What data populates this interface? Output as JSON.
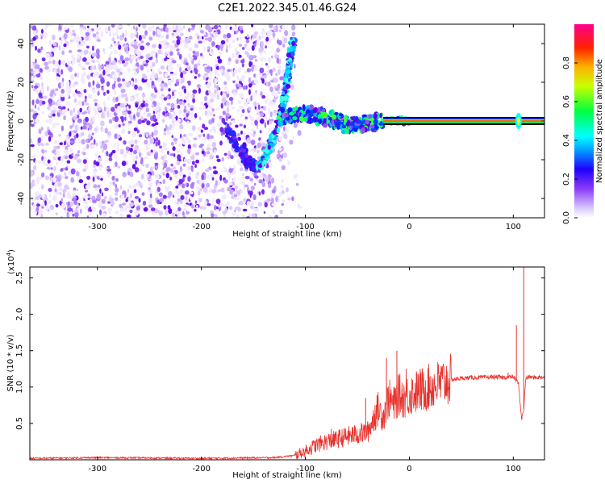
{
  "title": "C2E1.2022.345.01.46.G24",
  "chart_data": [
    {
      "type": "heatmap",
      "xlabel": "Height of straight line (km)",
      "ylabel": "Frequency (Hz)",
      "xlim": [
        -365,
        130
      ],
      "ylim": [
        -50,
        50
      ],
      "x_ticks": [
        -300,
        -200,
        -100,
        0,
        100
      ],
      "y_ticks": [
        -40,
        -20,
        0,
        20,
        40
      ],
      "colorbar": {
        "label": "Normalized spectral amplitude",
        "range": [
          0.0,
          1.0
        ],
        "ticks": [
          0.0,
          0.2,
          0.4,
          0.6,
          0.8
        ],
        "colors": [
          "#e8dcff",
          "#9b5ff5",
          "#5a00f0",
          "#0000ff",
          "#00ffff",
          "#00ff00",
          "#ffff00",
          "#ff8000",
          "#ff0000",
          "#ff0080"
        ]
      },
      "features": {
        "noise_region_x": [
          -365,
          -120
        ],
        "chirp_track": [
          [
            -145,
            -24
          ],
          [
            -135,
            -15
          ],
          [
            -125,
            0
          ],
          [
            -120,
            12
          ],
          [
            -115,
            30
          ],
          [
            -112,
            42
          ]
        ],
        "dip_track": [
          [
            -180,
            0
          ],
          [
            -165,
            -12
          ],
          [
            -155,
            -22
          ],
          [
            -147,
            -24
          ]
        ],
        "carrier_track": [
          [
            -120,
            2
          ],
          [
            -100,
            4
          ],
          [
            -80,
            2
          ],
          [
            -60,
            -2
          ],
          [
            -45,
            -2
          ],
          [
            -30,
            0
          ],
          [
            0,
            0
          ],
          [
            100,
            0
          ],
          [
            130,
            0
          ]
        ],
        "carrier_frequency_hz": 0
      }
    },
    {
      "type": "line",
      "xlabel": "Height of straight line (km)",
      "ylabel": "SNR (10 * v/v)",
      "yscale_label": "(x10",
      "yscale_exp": "4",
      "yscale_close": ")",
      "xlim": [
        -365,
        130
      ],
      "ylim": [
        0.0,
        2.65
      ],
      "x_ticks": [
        -300,
        -200,
        -100,
        0,
        100
      ],
      "y_ticks": [
        0.5,
        1.0,
        1.5,
        2.0,
        2.5
      ],
      "series": [
        {
          "color": "#e8322d",
          "x": [
            -365,
            -300,
            -200,
            -130,
            -110,
            -100,
            -90,
            -80,
            -70,
            -60,
            -50,
            -40,
            -35,
            -30,
            -25,
            -20,
            -15,
            -10,
            -5,
            0,
            10,
            20,
            30,
            40,
            50,
            60,
            70,
            80,
            90,
            100,
            105,
            108,
            110,
            112,
            115,
            120,
            130
          ],
          "y": [
            0.02,
            0.03,
            0.02,
            0.03,
            0.06,
            0.12,
            0.2,
            0.25,
            0.28,
            0.32,
            0.35,
            0.38,
            0.55,
            0.7,
            0.6,
            0.85,
            0.75,
            0.9,
            0.85,
            0.9,
            0.95,
            1.0,
            1.05,
            1.1,
            1.12,
            1.13,
            1.13,
            1.14,
            1.13,
            1.14,
            1.05,
            0.55,
            0.7,
            1.12,
            1.14,
            1.13,
            1.14
          ]
        }
      ],
      "spikes": [
        {
          "x": -75,
          "y": 0.42
        },
        {
          "x": -55,
          "y": 0.45
        },
        {
          "x": -42,
          "y": 0.85
        },
        {
          "x": -33,
          "y": 0.75
        },
        {
          "x": -22,
          "y": 1.4
        },
        {
          "x": -12,
          "y": 1.5
        },
        {
          "x": -3,
          "y": 1.25
        },
        {
          "x": 20,
          "y": 1.15
        },
        {
          "x": 95,
          "y": 1.2
        },
        {
          "x": 103,
          "y": 1.85
        },
        {
          "x": 110,
          "y": 2.65
        }
      ]
    }
  ]
}
